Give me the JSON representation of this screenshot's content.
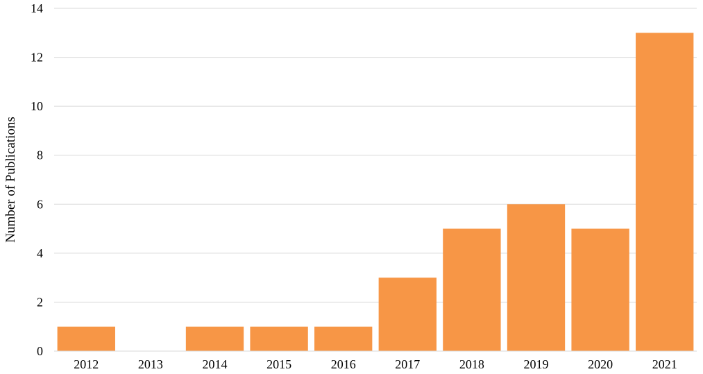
{
  "chart_data": {
    "type": "bar",
    "title": "",
    "xlabel": "",
    "ylabel": "Number of Publications",
    "categories": [
      "2012",
      "2013",
      "2014",
      "2015",
      "2016",
      "2017",
      "2018",
      "2019",
      "2020",
      "2021"
    ],
    "values": [
      1,
      0,
      1,
      1,
      1,
      3,
      5,
      6,
      5,
      13
    ],
    "ylim": [
      0,
      14
    ],
    "yticks": [
      0,
      2,
      4,
      6,
      8,
      10,
      12,
      14
    ],
    "grid": true,
    "legend": "none",
    "bar_color": "#f79646"
  }
}
